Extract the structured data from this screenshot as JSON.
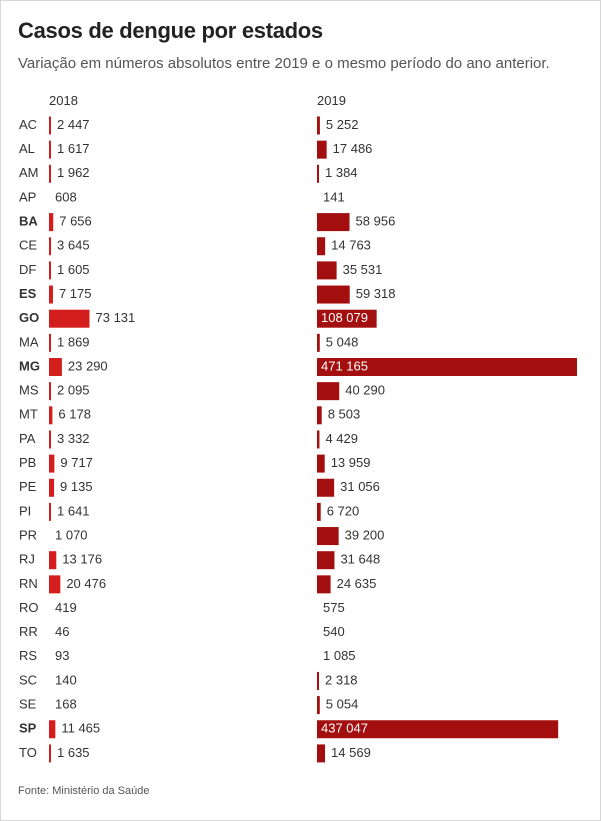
{
  "title": "Casos de dengue por estados",
  "subtitle": "Variação em números absolutos entre 2019 e o mesmo período do ano anterior.",
  "source": "Fonte: Ministério da Saúde",
  "colors": {
    "bar_2018": "#d41e1e",
    "bar_2019": "#a30f0f",
    "label_inside": "#ffffff",
    "text": "#333333"
  },
  "chart_data": {
    "type": "bar",
    "orientation": "horizontal",
    "series": [
      {
        "name": "2018",
        "values": [
          2447,
          1617,
          1962,
          608,
          7656,
          3645,
          1605,
          7175,
          73131,
          1869,
          23290,
          2095,
          6178,
          3332,
          9717,
          9135,
          1641,
          1070,
          13176,
          20476,
          419,
          46,
          93,
          140,
          168,
          11465,
          1635
        ]
      },
      {
        "name": "2019",
        "values": [
          5252,
          17486,
          1384,
          141,
          58956,
          14763,
          35531,
          59318,
          108079,
          5048,
          471165,
          40290,
          8503,
          4429,
          13959,
          31056,
          6720,
          39200,
          31648,
          24635,
          575,
          540,
          1085,
          2318,
          5054,
          437047,
          14569
        ]
      }
    ],
    "categories": [
      "AC",
      "AL",
      "AM",
      "AP",
      "BA",
      "CE",
      "DF",
      "ES",
      "GO",
      "MA",
      "MG",
      "MS",
      "MT",
      "PA",
      "PB",
      "PE",
      "PI",
      "PR",
      "RJ",
      "RN",
      "RO",
      "RR",
      "RS",
      "SC",
      "SE",
      "SP",
      "TO"
    ],
    "value_labels": {
      "2018": [
        "2 447",
        "1 617",
        "1 962",
        "608",
        "7 656",
        "3 645",
        "1 605",
        "7 175",
        "73 131",
        "1 869",
        "23 290",
        "2 095",
        "6 178",
        "3 332",
        "9 717",
        "9 135",
        "1 641",
        "1 070",
        "13 176",
        "20 476",
        "419",
        "46",
        "93",
        "140",
        "168",
        "11 465",
        "1 635"
      ],
      "2019": [
        "5 252",
        "17 486",
        "1 384",
        "141",
        "58 956",
        "14 763",
        "35 531",
        "59 318",
        "108 079",
        "5 048",
        "471 165",
        "40 290",
        "8 503",
        "4 429",
        "13 959",
        "31 056",
        "6 720",
        "39 200",
        "31 648",
        "24 635",
        "575",
        "540",
        "1 085",
        "2 318",
        "5 054",
        "437 047",
        "14 569"
      ]
    },
    "bold_categories": [
      "BA",
      "ES",
      "GO",
      "MG",
      "SP"
    ],
    "labels_inside_bar_2019": [
      "GO",
      "MG",
      "SP"
    ],
    "legend": "column headers"
  }
}
